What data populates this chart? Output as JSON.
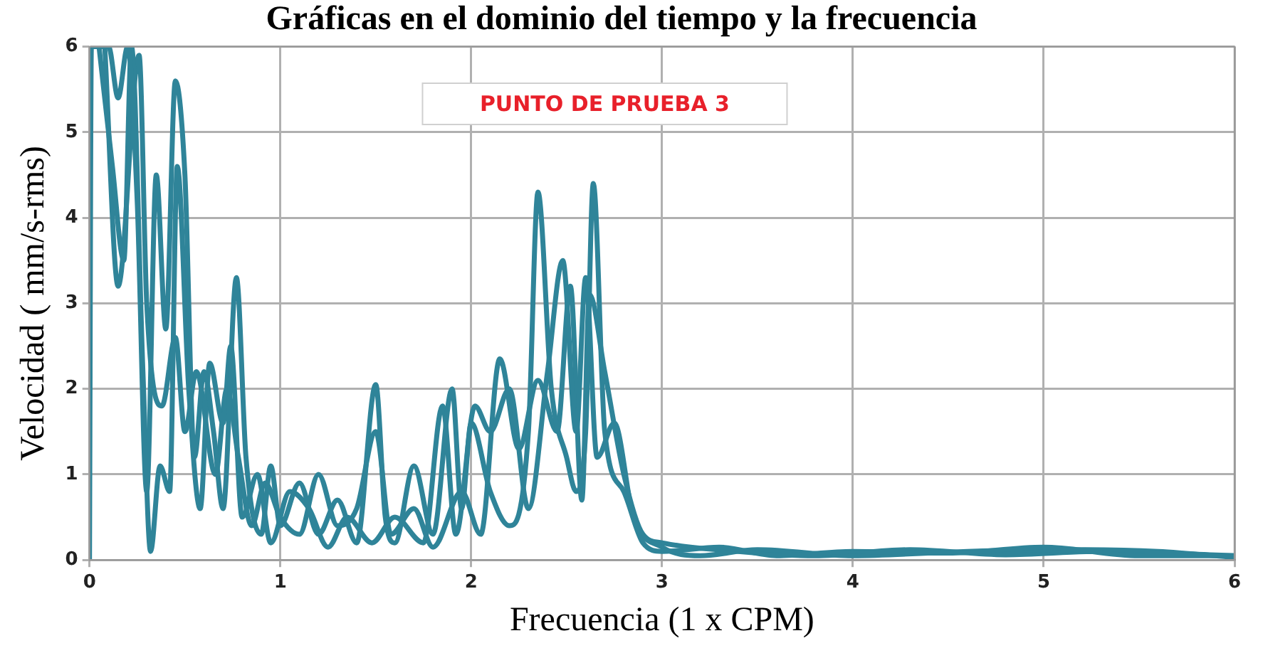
{
  "chart_data": {
    "type": "line",
    "title": "Gráficas en el dominio del tiempo y la frecuencia",
    "xlabel": "Frecuencia (1 x CPM)",
    "ylabel": "Velocidad ( mm/s-rms)",
    "annotations": [
      "PUNTO DE PRUEBA 3"
    ],
    "xlim": [
      0,
      6
    ],
    "xticks": [
      0,
      1,
      2,
      3,
      4,
      5,
      6
    ],
    "ylim": [
      0,
      6
    ],
    "yticks": [
      0,
      1,
      2,
      3,
      4,
      5,
      6
    ],
    "grid": true,
    "legend": false,
    "marker": "none",
    "line_style": "solid",
    "series": [
      {
        "color": "#2f8499",
        "x": [
          0,
          0.01,
          0.1,
          0.15,
          0.2,
          0.25,
          0.3,
          0.35,
          0.4,
          0.45,
          0.5,
          0.55,
          0.6,
          0.65,
          0.7,
          0.77,
          0.82,
          0.9,
          0.95,
          1.0,
          1.1,
          1.2,
          1.3,
          1.4,
          1.5,
          1.55,
          1.6,
          1.7,
          1.8,
          1.9,
          1.95,
          2.0,
          2.1,
          2.2,
          2.3,
          2.35,
          2.42,
          2.5,
          2.55,
          2.6,
          2.64,
          2.7,
          2.8,
          2.9,
          3.0,
          3.3,
          3.6,
          4.0,
          4.5,
          5.0,
          5.5,
          6.0
        ],
        "values": [
          0,
          6,
          6,
          5.4,
          6,
          4.2,
          0.8,
          4.5,
          2.7,
          5.6,
          4.5,
          1.2,
          2.2,
          1.5,
          0.6,
          3.3,
          1.2,
          0.3,
          1.1,
          0.4,
          0.9,
          0.3,
          0.7,
          0.2,
          2.05,
          0.5,
          0.2,
          1.1,
          0.3,
          2.0,
          0.6,
          1.6,
          0.8,
          0.4,
          1.5,
          4.3,
          2.0,
          1.2,
          0.8,
          1.5,
          4.4,
          1.5,
          0.8,
          0.2,
          0.1,
          0.15,
          0.05,
          0.1,
          0.08,
          0.15,
          0.05,
          0.05
        ]
      },
      {
        "color": "#2f8499",
        "x": [
          0.05,
          0.12,
          0.18,
          0.22,
          0.28,
          0.32,
          0.37,
          0.42,
          0.46,
          0.52,
          0.58,
          0.63,
          0.7,
          0.74,
          0.8,
          0.88,
          0.95,
          1.05,
          1.15,
          1.25,
          1.35,
          1.48,
          1.6,
          1.75,
          1.85,
          1.92,
          2.02,
          2.1,
          2.2,
          2.3,
          2.4,
          2.48,
          2.55,
          2.6,
          2.66,
          2.75,
          2.85,
          3.0,
          3.2,
          3.5,
          4.0,
          4.6,
          5.2,
          5.6,
          6.0
        ],
        "values": [
          6,
          4.6,
          3.5,
          6,
          2.2,
          0.1,
          1.1,
          0.8,
          4.6,
          2.0,
          0.6,
          2.3,
          1.6,
          2.5,
          0.5,
          1.0,
          0.2,
          0.8,
          0.6,
          0.15,
          0.5,
          0.2,
          0.5,
          0.2,
          1.8,
          0.3,
          1.8,
          1.5,
          2.0,
          0.6,
          2.2,
          3.5,
          1.5,
          3.3,
          1.2,
          1.6,
          0.5,
          0.15,
          0.05,
          0.12,
          0.05,
          0.1,
          0.12,
          0.1,
          0.03
        ]
      },
      {
        "color": "#2f8499",
        "x": [
          0.08,
          0.15,
          0.26,
          0.3,
          0.38,
          0.45,
          0.5,
          0.56,
          0.66,
          0.72,
          0.78,
          0.85,
          0.92,
          1.0,
          1.1,
          1.2,
          1.3,
          1.4,
          1.5,
          1.58,
          1.7,
          1.8,
          1.95,
          2.05,
          2.15,
          2.25,
          2.35,
          2.45,
          2.52,
          2.58,
          2.62,
          2.7,
          2.8,
          2.9,
          3.0,
          3.4,
          3.8,
          4.3,
          4.8,
          5.3,
          6.0
        ],
        "values": [
          6,
          3.2,
          5.9,
          3.0,
          1.8,
          2.6,
          1.5,
          2.2,
          1.0,
          2.0,
          1.2,
          0.4,
          0.9,
          0.5,
          0.3,
          1.0,
          0.4,
          0.6,
          1.5,
          0.3,
          0.6,
          0.15,
          0.8,
          0.3,
          2.35,
          1.3,
          2.1,
          1.5,
          3.2,
          0.7,
          3.1,
          2.2,
          1.0,
          0.3,
          0.2,
          0.1,
          0.05,
          0.12,
          0.06,
          0.1,
          0.05
        ]
      }
    ]
  }
}
